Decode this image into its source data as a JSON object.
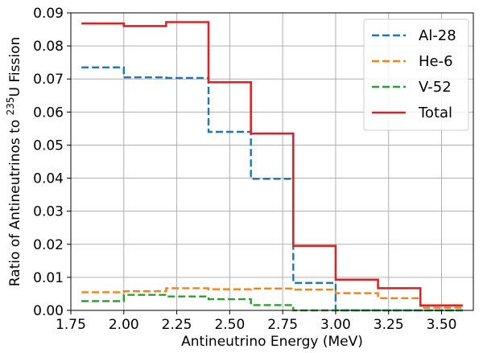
{
  "chart_data": {
    "type": "line",
    "xlabel": "Antineutrino Energy (MeV)",
    "ylabel_prefix": "Ratio of Antineutrinos to ",
    "ylabel_sup": "235",
    "ylabel_suffix": "U Fission",
    "xlim": [
      1.75,
      3.65
    ],
    "ylim": [
      0,
      0.09
    ],
    "xticks": [
      1.75,
      2.0,
      2.25,
      2.5,
      2.75,
      3.0,
      3.25,
      3.5
    ],
    "xtick_labels": [
      "1.75",
      "2.00",
      "2.25",
      "2.50",
      "2.75",
      "3.00",
      "3.25",
      "3.50"
    ],
    "yticks": [
      0,
      0.01,
      0.02,
      0.03,
      0.04,
      0.05,
      0.06,
      0.07,
      0.08,
      0.09
    ],
    "ytick_labels": [
      "0.00",
      "0.01",
      "0.02",
      "0.03",
      "0.04",
      "0.05",
      "0.06",
      "0.07",
      "0.08",
      "0.09"
    ],
    "grid": true,
    "legend_position": "top-right",
    "bin_edges": [
      1.8,
      2.0,
      2.2,
      2.4,
      2.6,
      2.8,
      3.0,
      3.2,
      3.4,
      3.6
    ],
    "series": [
      {
        "name": "Al-28",
        "color": "#1f77b4",
        "style": "dashed",
        "values": [
          0.0735,
          0.0705,
          0.0703,
          0.054,
          0.0398,
          0.0083,
          0.0,
          0.0,
          0.0
        ]
      },
      {
        "name": "He-6",
        "color": "#ff7f0e",
        "style": "dashed",
        "values": [
          0.0055,
          0.0058,
          0.0067,
          0.0064,
          0.0066,
          0.0063,
          0.0052,
          0.0037,
          0.0008
        ]
      },
      {
        "name": "V-52",
        "color": "#2ca02c",
        "style": "dashed",
        "values": [
          0.0028,
          0.0047,
          0.0042,
          0.0034,
          0.0016,
          0.0,
          0.0,
          0.0,
          0.0
        ]
      },
      {
        "name": "Total",
        "color": "#d62728",
        "style": "solid",
        "values": [
          0.0868,
          0.086,
          0.0872,
          0.069,
          0.0535,
          0.0195,
          0.0093,
          0.0067,
          0.0015
        ]
      }
    ]
  }
}
